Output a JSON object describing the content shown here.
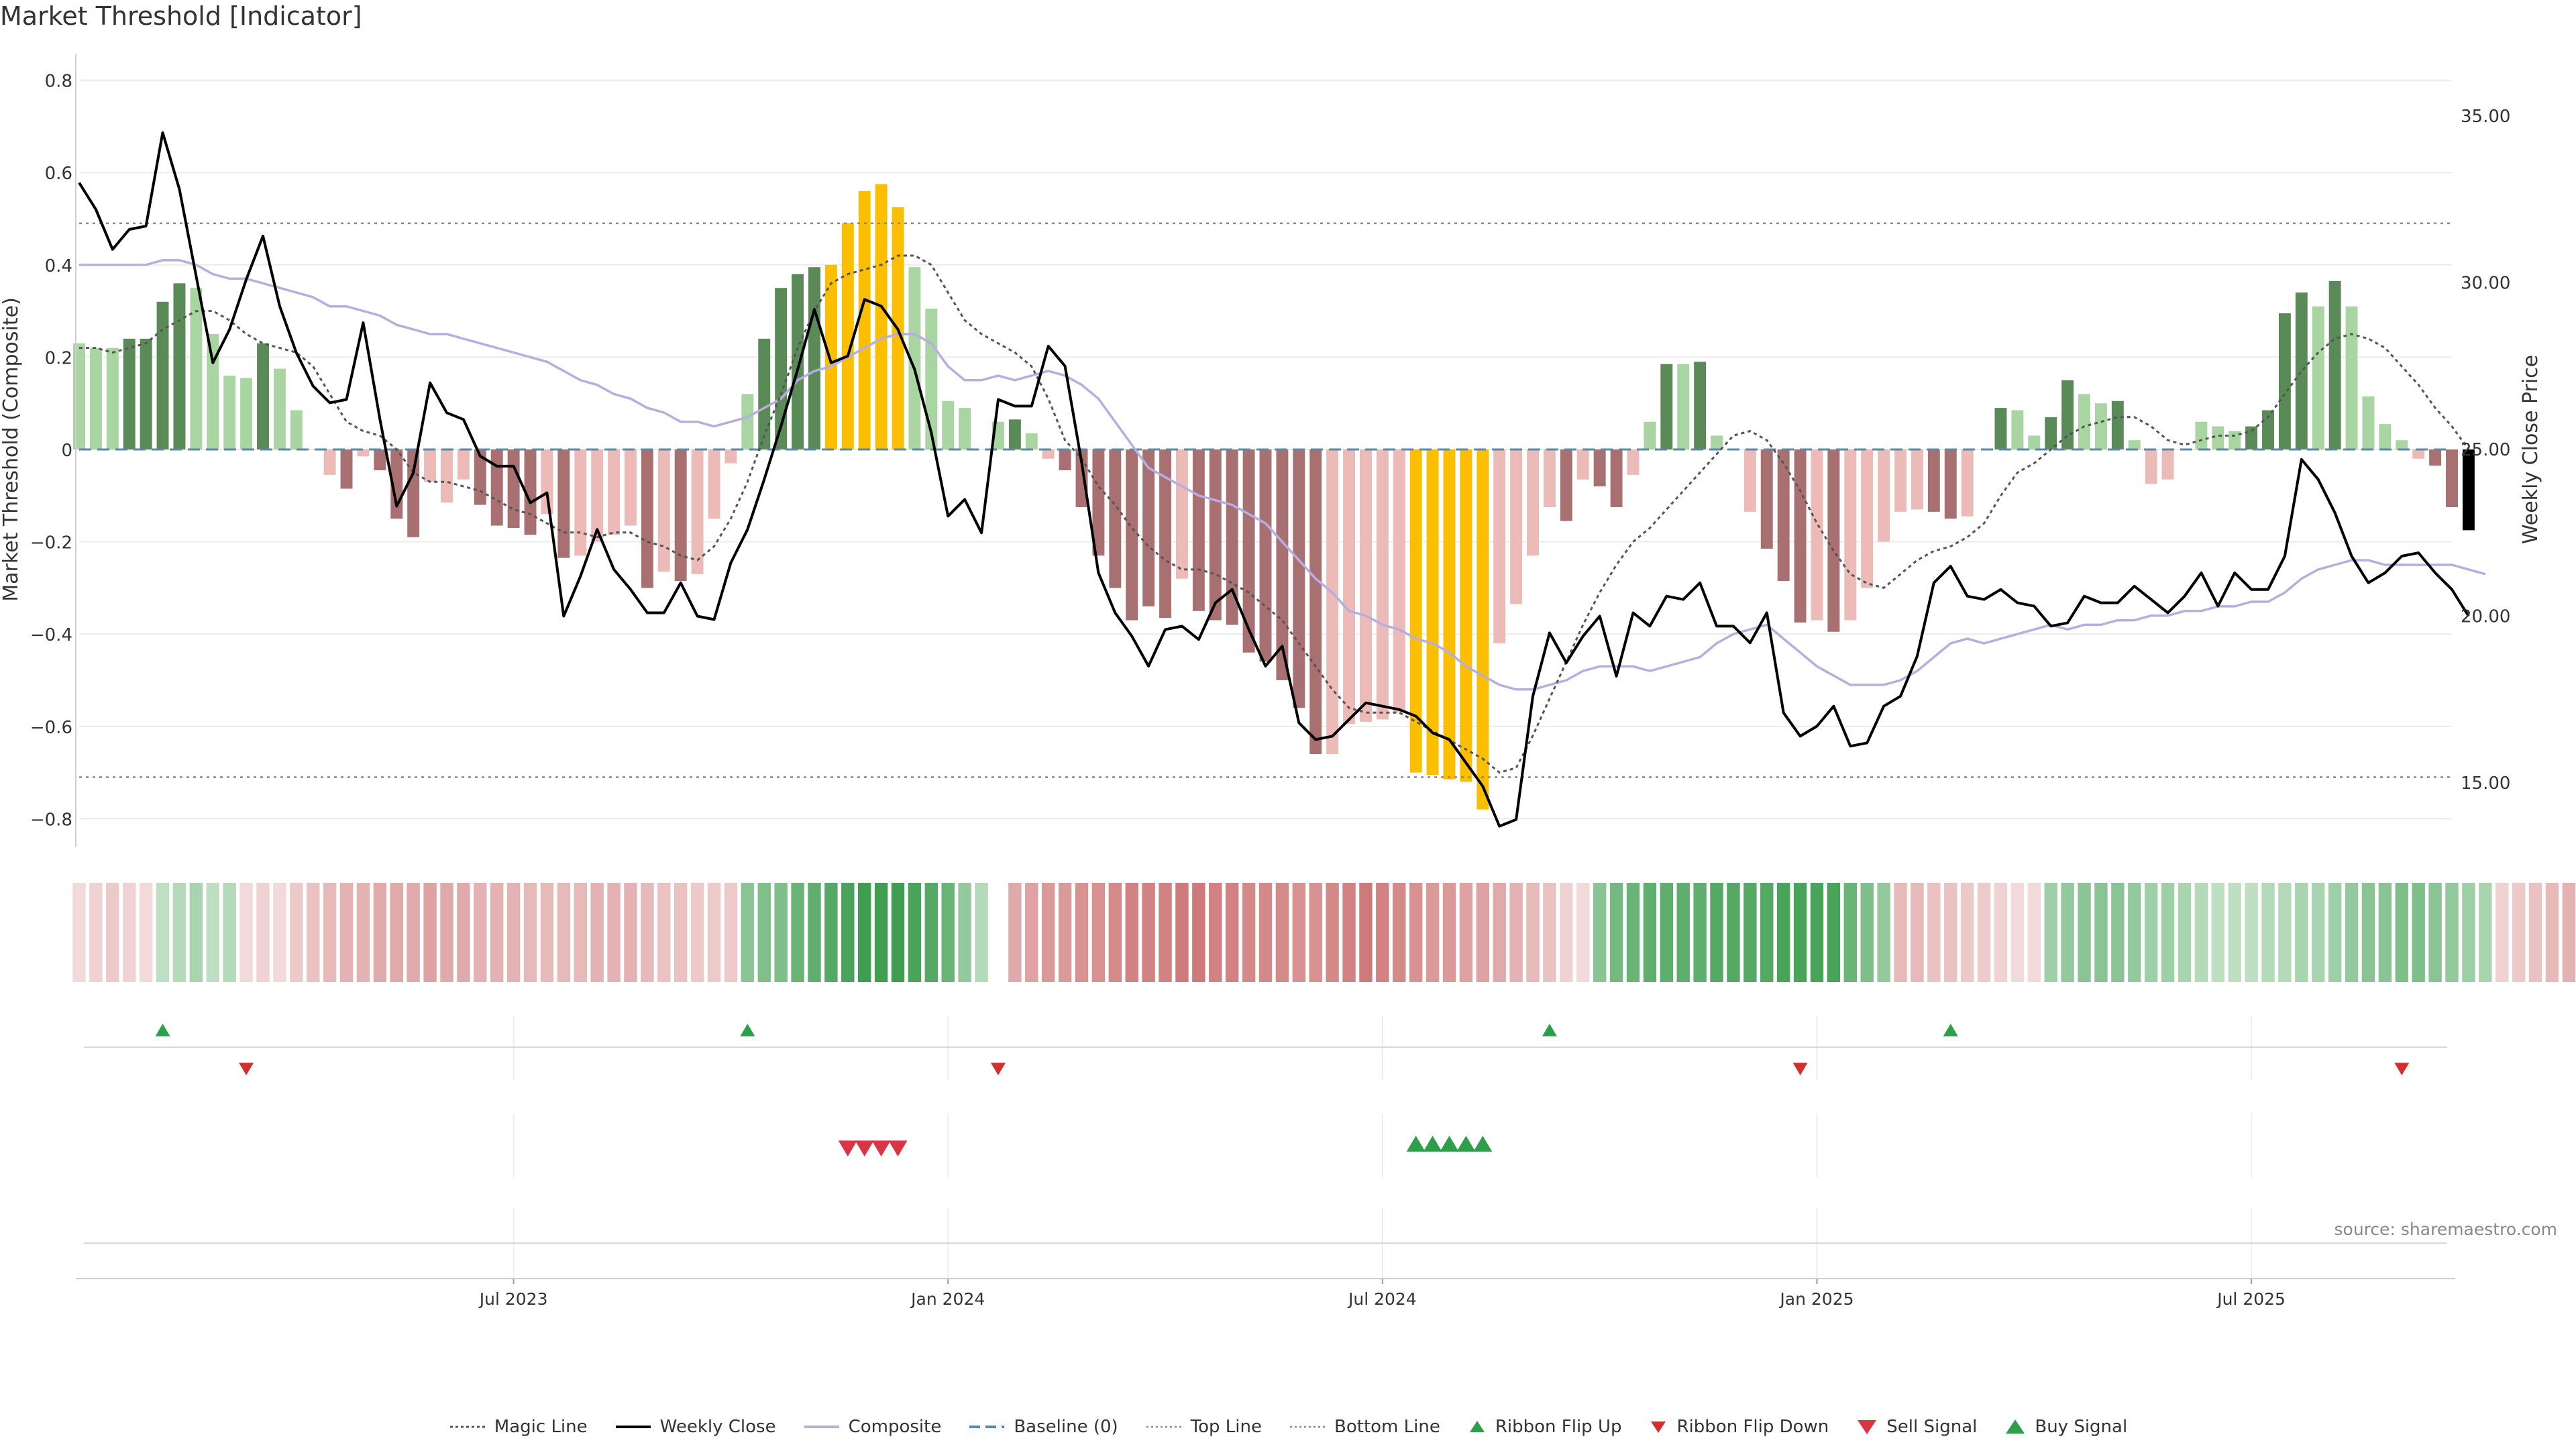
{
  "title": "Market Threshold [Indicator]",
  "source": "source: sharemaestro.com",
  "colors": {
    "weekly_close": "#000000",
    "composite": "#b6aee0",
    "magic_line": "#555555",
    "baseline": "#5b8aa6",
    "threshold_lines": "#888888",
    "bar_dark_green": "#5a8a57",
    "bar_light_green": "#a8d5a2",
    "bar_dark_red": "#a87070",
    "bar_light_red": "#ecbab7",
    "bar_extreme": "#fbbf00",
    "signal_green": "#2e9e4a",
    "signal_red": "#d93545",
    "ribbon_green_strong": "#3f9e52",
    "ribbon_green_light": "#d4ead5",
    "ribbon_red_strong": "#c96a6a",
    "ribbon_red_light": "#f3dada"
  },
  "chart_data": {
    "type": "bar",
    "title": "Market Threshold [Indicator]",
    "ylabel": "Market Threshold (Composite)",
    "y2label": "Weekly Close Price",
    "ylim": [
      -0.85,
      0.82
    ],
    "y2lim": [
      13.5,
      36.8
    ],
    "y_ticks": [
      "0.8",
      "0.6",
      "0.4",
      "0.2",
      "0",
      "−0.2",
      "−0.4",
      "−0.6",
      "−0.8"
    ],
    "y2_ticks": [
      "35.00",
      "30.00",
      "25.00",
      "20.00",
      "15.00"
    ],
    "x_ticks": [
      "Jul 2023",
      "Jan 2024",
      "Jul 2024",
      "Jan 2025",
      "Jul 2025"
    ],
    "x_tick_weeks": [
      26,
      52,
      78,
      104,
      130
    ],
    "top_line": 0.49,
    "bottom_line": -0.71,
    "baseline": 0,
    "weeks": 143,
    "composite_bars": [
      0.23,
      0.22,
      0.22,
      0.24,
      0.24,
      0.32,
      0.36,
      0.35,
      0.25,
      0.16,
      0.155,
      0.23,
      0.175,
      0.085,
      0,
      -0.055,
      -0.085,
      -0.015,
      -0.045,
      -0.15,
      -0.19,
      -0.07,
      -0.115,
      -0.065,
      -0.12,
      -0.165,
      -0.17,
      -0.185,
      -0.14,
      -0.235,
      -0.23,
      -0.2,
      -0.185,
      -0.165,
      -0.3,
      -0.265,
      -0.285,
      -0.27,
      -0.15,
      -0.03,
      0.12,
      0.24,
      0.35,
      0.38,
      0.395,
      0.4,
      0.49,
      0.56,
      0.575,
      0.525,
      0.395,
      0.305,
      0.105,
      0.09,
      0,
      0.06,
      0.065,
      0.035,
      -0.02,
      -0.045,
      -0.125,
      -0.23,
      -0.3,
      -0.37,
      -0.34,
      -0.365,
      -0.28,
      -0.35,
      -0.37,
      -0.38,
      -0.44,
      -0.46,
      -0.5,
      -0.56,
      -0.66,
      -0.66,
      -0.595,
      -0.59,
      -0.585,
      -0.57,
      -0.7,
      -0.705,
      -0.715,
      -0.72,
      -0.78,
      -0.42,
      -0.335,
      -0.23,
      -0.125,
      -0.155,
      -0.065,
      -0.08,
      -0.125,
      -0.055,
      0.06,
      0.185,
      0.185,
      0.19,
      0.03,
      0,
      -0.135,
      -0.215,
      -0.285,
      -0.375,
      -0.37,
      -0.395,
      -0.37,
      -0.3,
      -0.2,
      -0.135,
      -0.13,
      -0.135,
      -0.15,
      -0.145,
      0,
      0.09,
      0.085,
      0.03,
      0.07,
      0.15,
      0.12,
      0.1,
      0.105,
      0.02,
      -0.075,
      -0.065,
      0,
      0.06,
      0.05,
      0.04,
      0.05,
      0.085,
      0.295,
      0.34,
      0.31,
      0.365,
      0.31,
      0.115,
      0.055,
      0.02,
      -0.02,
      -0.035,
      -0.125,
      -0.175
    ],
    "bar_categories": [
      "lg",
      "lg",
      "lg",
      "dg",
      "dg",
      "dg",
      "dg",
      "lg",
      "lg",
      "lg",
      "lg",
      "dg",
      "lg",
      "lg",
      "lg",
      "lr",
      "dr",
      "lr",
      "dr",
      "dr",
      "dr",
      "lr",
      "lr",
      "lr",
      "dr",
      "dr",
      "dr",
      "dr",
      "lr",
      "dr",
      "lr",
      "lr",
      "lr",
      "lr",
      "dr",
      "lr",
      "dr",
      "lr",
      "lr",
      "lr",
      "lg",
      "dg",
      "dg",
      "dg",
      "dg",
      "ex",
      "ex",
      "ex",
      "ex",
      "ex",
      "lg",
      "lg",
      "lg",
      "lg",
      "lg",
      "lg",
      "dg",
      "lg",
      "lr",
      "dr",
      "dr",
      "dr",
      "dr",
      "dr",
      "dr",
      "dr",
      "lr",
      "dr",
      "dr",
      "dr",
      "dr",
      "dr",
      "dr",
      "dr",
      "dr",
      "lr",
      "lr",
      "lr",
      "lr",
      "lr",
      "ex",
      "ex",
      "ex",
      "ex",
      "ex",
      "lr",
      "lr",
      "lr",
      "lr",
      "dr",
      "lr",
      "dr",
      "dr",
      "lr",
      "lg",
      "dg",
      "lg",
      "dg",
      "lg",
      "lr",
      "lr",
      "dr",
      "dr",
      "dr",
      "lr",
      "dr",
      "lr",
      "lr",
      "lr",
      "lr",
      "lr",
      "dr",
      "dr",
      "lr",
      "lg",
      "dg",
      "lg",
      "lg",
      "dg",
      "dg",
      "lg",
      "lg",
      "dg",
      "lg",
      "lr",
      "lr",
      "lg",
      "lg",
      "lg",
      "lg",
      "dg",
      "dg",
      "dg",
      "dg",
      "lg",
      "dg",
      "lg",
      "lg",
      "lg",
      "lg",
      "lr",
      "dr",
      "dr"
    ],
    "weekly_close": [
      33.0,
      32.2,
      31.0,
      31.6,
      31.7,
      34.5,
      32.8,
      30.2,
      27.6,
      28.6,
      30.1,
      31.4,
      29.3,
      27.9,
      26.9,
      26.4,
      26.5,
      28.8,
      25.9,
      23.3,
      24.3,
      27.0,
      26.1,
      25.9,
      24.8,
      24.5,
      24.5,
      23.4,
      23.7,
      20.0,
      21.2,
      22.6,
      21.4,
      20.8,
      20.1,
      20.1,
      21.0,
      20.0,
      19.9,
      21.6,
      22.6,
      24.1,
      25.7,
      27.4,
      29.2,
      27.6,
      27.8,
      29.5,
      29.3,
      28.6,
      27.4,
      25.5,
      23.0,
      23.5,
      22.5,
      26.5,
      26.3,
      26.3,
      28.1,
      27.5,
      24.6,
      21.3,
      20.1,
      19.4,
      18.5,
      19.6,
      19.7,
      19.3,
      20.4,
      20.8,
      19.6,
      18.5,
      19.1,
      16.8,
      16.3,
      16.4,
      16.9,
      17.4,
      17.3,
      17.2,
      17.0,
      16.5,
      16.3,
      15.6,
      14.9,
      13.7,
      13.9,
      17.6,
      19.5,
      18.6,
      19.4,
      20.0,
      18.2,
      20.1,
      19.7,
      20.6,
      20.5,
      21.0,
      19.7,
      19.7,
      19.2,
      20.1,
      17.1,
      16.4,
      16.7,
      17.3,
      16.1,
      16.2,
      17.3,
      17.6,
      18.8,
      21.0,
      21.5,
      20.6,
      20.5,
      20.8,
      20.4,
      20.3,
      19.7,
      19.8,
      20.6,
      20.4,
      20.4,
      20.9,
      20.5,
      20.1,
      20.6,
      21.3,
      20.3,
      21.3,
      20.8,
      20.8,
      21.8,
      24.7,
      24.1,
      23.1,
      21.8,
      21.0,
      21.3,
      21.8,
      21.9,
      21.3,
      20.8,
      20.0
    ],
    "composite_line": [
      0.4,
      0.4,
      0.4,
      0.4,
      0.4,
      0.41,
      0.41,
      0.4,
      0.38,
      0.37,
      0.37,
      0.36,
      0.35,
      0.34,
      0.33,
      0.31,
      0.31,
      0.3,
      0.29,
      0.27,
      0.26,
      0.25,
      0.25,
      0.24,
      0.23,
      0.22,
      0.21,
      0.2,
      0.19,
      0.17,
      0.15,
      0.14,
      0.12,
      0.11,
      0.09,
      0.08,
      0.06,
      0.06,
      0.05,
      0.06,
      0.07,
      0.09,
      0.11,
      0.15,
      0.17,
      0.18,
      0.2,
      0.22,
      0.24,
      0.25,
      0.25,
      0.23,
      0.18,
      0.15,
      0.15,
      0.16,
      0.15,
      0.16,
      0.17,
      0.16,
      0.14,
      0.11,
      0.06,
      0.01,
      -0.04,
      -0.06,
      -0.08,
      -0.1,
      -0.11,
      -0.12,
      -0.14,
      -0.16,
      -0.2,
      -0.24,
      -0.28,
      -0.31,
      -0.35,
      -0.36,
      -0.38,
      -0.39,
      -0.41,
      -0.42,
      -0.44,
      -0.47,
      -0.49,
      -0.51,
      -0.52,
      -0.52,
      -0.51,
      -0.5,
      -0.48,
      -0.47,
      -0.47,
      -0.47,
      -0.48,
      -0.47,
      -0.46,
      -0.45,
      -0.42,
      -0.4,
      -0.39,
      -0.38,
      -0.41,
      -0.44,
      -0.47,
      -0.49,
      -0.51,
      -0.51,
      -0.51,
      -0.5,
      -0.48,
      -0.45,
      -0.42,
      -0.41,
      -0.42,
      -0.41,
      -0.4,
      -0.39,
      -0.38,
      -0.39,
      -0.38,
      -0.38,
      -0.37,
      -0.37,
      -0.36,
      -0.36,
      -0.35,
      -0.35,
      -0.34,
      -0.34,
      -0.33,
      -0.33,
      -0.31,
      -0.28,
      -0.26,
      -0.25,
      -0.24,
      -0.24,
      -0.25,
      -0.25,
      -0.25,
      -0.25,
      -0.25,
      -0.26,
      -0.27
    ],
    "magic_line": [
      0.22,
      0.22,
      0.21,
      0.22,
      0.23,
      0.26,
      0.28,
      0.3,
      0.3,
      0.28,
      0.25,
      0.23,
      0.22,
      0.21,
      0.18,
      0.12,
      0.06,
      0.04,
      0.03,
      0,
      -0.05,
      -0.07,
      -0.07,
      -0.08,
      -0.09,
      -0.11,
      -0.13,
      -0.14,
      -0.16,
      -0.18,
      -0.18,
      -0.19,
      -0.18,
      -0.18,
      -0.2,
      -0.21,
      -0.23,
      -0.24,
      -0.21,
      -0.15,
      -0.07,
      0.03,
      0.12,
      0.22,
      0.3,
      0.36,
      0.38,
      0.39,
      0.4,
      0.42,
      0.42,
      0.4,
      0.34,
      0.28,
      0.25,
      0.23,
      0.21,
      0.18,
      0.11,
      0.02,
      -0.02,
      -0.08,
      -0.12,
      -0.17,
      -0.21,
      -0.24,
      -0.26,
      -0.26,
      -0.27,
      -0.29,
      -0.31,
      -0.34,
      -0.37,
      -0.42,
      -0.47,
      -0.52,
      -0.56,
      -0.57,
      -0.57,
      -0.57,
      -0.59,
      -0.61,
      -0.63,
      -0.65,
      -0.67,
      -0.7,
      -0.69,
      -0.62,
      -0.54,
      -0.46,
      -0.38,
      -0.31,
      -0.25,
      -0.2,
      -0.17,
      -0.13,
      -0.09,
      -0.05,
      -0.01,
      0.03,
      0.04,
      0.02,
      -0.03,
      -0.09,
      -0.16,
      -0.22,
      -0.27,
      -0.29,
      -0.3,
      -0.27,
      -0.24,
      -0.22,
      -0.21,
      -0.19,
      -0.16,
      -0.1,
      -0.05,
      -0.03,
      0,
      0.03,
      0.05,
      0.06,
      0.07,
      0.07,
      0.05,
      0.02,
      0.01,
      0.02,
      0.03,
      0.03,
      0.04,
      0.07,
      0.12,
      0.17,
      0.21,
      0.24,
      0.25,
      0.24,
      0.22,
      0.18,
      0.14,
      0.09,
      0.05,
      0
    ],
    "ribbon": [
      -0.2,
      -0.25,
      -0.3,
      -0.25,
      -0.2,
      0.3,
      0.35,
      0.4,
      0.3,
      0.35,
      -0.2,
      -0.25,
      -0.2,
      -0.3,
      -0.35,
      -0.4,
      -0.45,
      -0.45,
      -0.5,
      -0.5,
      -0.5,
      -0.55,
      -0.5,
      -0.5,
      -0.45,
      -0.45,
      -0.45,
      -0.4,
      -0.4,
      -0.4,
      -0.4,
      -0.45,
      -0.45,
      -0.45,
      -0.4,
      -0.35,
      -0.35,
      -0.3,
      -0.3,
      -0.3,
      0.55,
      0.6,
      0.6,
      0.7,
      0.75,
      0.8,
      0.85,
      0.9,
      0.95,
      0.9,
      0.85,
      0.8,
      0.7,
      0.5,
      0.35,
      null,
      -0.5,
      -0.55,
      -0.6,
      -0.6,
      -0.65,
      -0.65,
      -0.7,
      -0.75,
      -0.75,
      -0.75,
      -0.8,
      -0.8,
      -0.75,
      -0.75,
      -0.7,
      -0.7,
      -0.7,
      -0.65,
      -0.65,
      -0.7,
      -0.75,
      -0.8,
      -0.75,
      -0.7,
      -0.65,
      -0.6,
      -0.6,
      -0.55,
      -0.55,
      -0.5,
      -0.45,
      -0.4,
      -0.35,
      -0.25,
      -0.2,
      0.55,
      0.65,
      0.7,
      0.75,
      0.75,
      0.75,
      0.75,
      0.8,
      0.8,
      0.8,
      0.8,
      0.85,
      0.85,
      0.85,
      0.85,
      0.7,
      0.6,
      0.5,
      -0.4,
      -0.4,
      -0.35,
      -0.35,
      -0.3,
      -0.3,
      -0.25,
      -0.2,
      -0.2,
      0.45,
      0.5,
      0.55,
      0.55,
      0.55,
      0.5,
      0.45,
      0.45,
      0.4,
      0.35,
      0.3,
      0.3,
      0.3,
      0.35,
      0.35,
      0.4,
      0.4,
      0.45,
      0.5,
      0.55,
      0.55,
      0.6,
      0.6,
      0.55,
      0.5,
      0.45,
      0.4,
      -0.25,
      -0.3,
      -0.35,
      -0.4,
      -0.45
    ],
    "ribbon_flip_up": [
      5,
      40,
      88,
      112
    ],
    "ribbon_flip_down": [
      10,
      55,
      103,
      139
    ],
    "sell_signal": [
      46,
      47,
      48,
      49
    ],
    "buy_signal": [
      80,
      81,
      82,
      83,
      84
    ],
    "legend": [
      "Magic Line",
      "Weekly Close",
      "Composite",
      "Baseline (0)",
      "Top Line",
      "Bottom Line",
      "Ribbon Flip Up",
      "Ribbon Flip Down",
      "Sell Signal",
      "Buy Signal"
    ]
  }
}
